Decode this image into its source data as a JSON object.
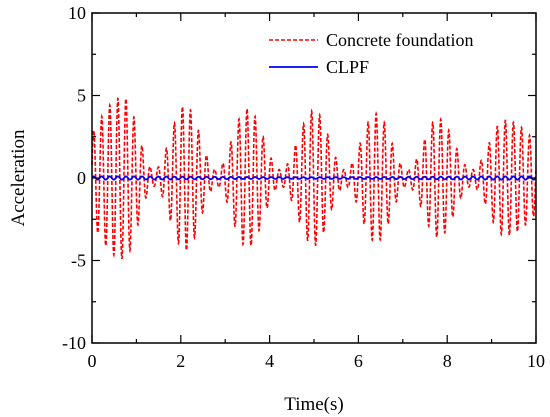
{
  "chart_data": {
    "type": "line",
    "title": "",
    "xlabel": "Time(s)",
    "ylabel": "Acceleration",
    "xlim": [
      0,
      10
    ],
    "ylim": [
      -10,
      10
    ],
    "x_ticks": [
      0,
      2,
      4,
      6,
      8,
      10
    ],
    "y_ticks": [
      -10,
      -5,
      0,
      5,
      10
    ],
    "x_tick_labels": [
      "0",
      "2",
      "4",
      "6",
      "8",
      "10"
    ],
    "y_tick_labels": [
      "-10",
      "-5",
      "0",
      "5",
      "10"
    ],
    "grid": false,
    "legend_position": "top-right",
    "series": [
      {
        "name": "Concrete foundation",
        "color": "#ff0000",
        "dash": "dashed",
        "style": "oscillation",
        "carrier_frequency_hz": 5.5,
        "beat_period_s": 1.43,
        "envelope_peaks": [
          {
            "t": 0.7,
            "amp": 4.9
          },
          {
            "t": 2.1,
            "amp": 4.4
          },
          {
            "t": 3.5,
            "amp": 4.2
          },
          {
            "t": 5.0,
            "amp": 4.1
          },
          {
            "t": 6.4,
            "amp": 3.9
          },
          {
            "t": 7.8,
            "amp": 3.6
          },
          {
            "t": 9.3,
            "amp": 3.5
          }
        ],
        "envelope_min_amp": 0.5
      },
      {
        "name": "CLPF",
        "color": "#0000ff",
        "dash": "solid",
        "style": "oscillation",
        "carrier_frequency_hz": 5.5,
        "envelope_peaks": [
          {
            "t": 0.0,
            "amp": 0.1
          },
          {
            "t": 10.0,
            "amp": 0.1
          }
        ],
        "envelope_min_amp": 0.05
      }
    ]
  }
}
